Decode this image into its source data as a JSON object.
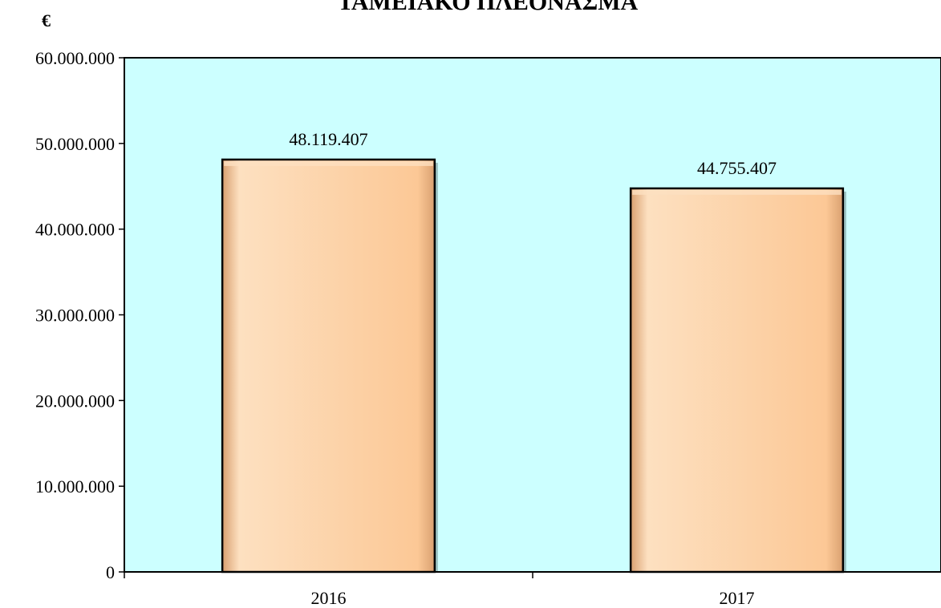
{
  "chart_data": {
    "type": "bar",
    "title": "ΤΑΜΕΙΑΚΟ ΠΛΕΟΝΑΣΜΑ",
    "unit_label": "€",
    "categories": [
      "2016",
      "2017"
    ],
    "values": [
      48119407,
      44755407
    ],
    "value_labels": [
      "48.119.407",
      "44.755.407"
    ],
    "ylim": [
      0,
      60000000
    ],
    "yticks": [
      0,
      10000000,
      20000000,
      30000000,
      40000000,
      50000000,
      60000000
    ],
    "ytick_labels": [
      "0",
      "10.000.000",
      "20.000.000",
      "30.000.000",
      "40.000.000",
      "50.000.000",
      "60.000.000"
    ],
    "grid": false,
    "legend": "none",
    "colors": {
      "plot_background": "#ccffff",
      "bar_fill": "#fcc896",
      "bar_fill_highlight": "#fde0c0",
      "bar_fill_shadow": "#d9a070",
      "bar_border": "#000000"
    }
  }
}
